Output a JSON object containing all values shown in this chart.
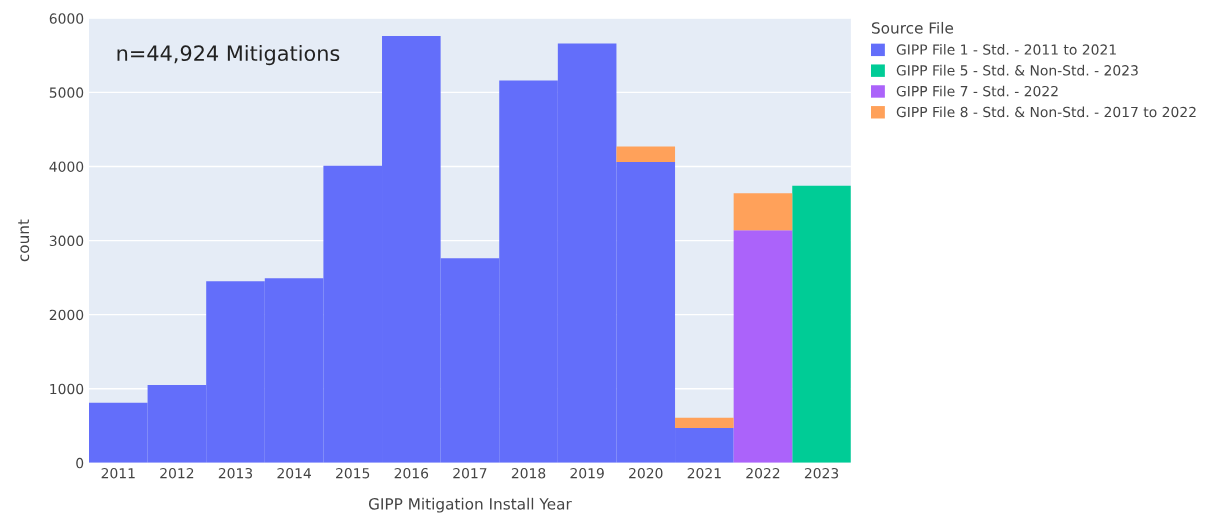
{
  "chart_data": {
    "type": "bar",
    "stacked": true,
    "xlabel": "GIPP Mitigation Install Year",
    "ylabel": "count",
    "legend_title": "Source File",
    "categories": [
      "2011",
      "2012",
      "2013",
      "2014",
      "2015",
      "2016",
      "2017",
      "2018",
      "2019",
      "2020",
      "2021",
      "2022",
      "2023"
    ],
    "series": [
      {
        "name": "GIPP File 1 - Std. - 2011 to 2021",
        "color": "#636efa",
        "values": [
          810,
          1050,
          2450,
          2490,
          4010,
          5760,
          2760,
          5160,
          5660,
          4060,
          470,
          null,
          null
        ]
      },
      {
        "name": "GIPP File 5 - Std. & Non-Std. - 2023",
        "color": "#00cc96",
        "values": [
          null,
          null,
          null,
          null,
          null,
          null,
          null,
          null,
          null,
          null,
          null,
          null,
          3740
        ]
      },
      {
        "name": "GIPP File 7 - Std. - 2022",
        "color": "#ab63fa",
        "values": [
          null,
          null,
          null,
          null,
          null,
          null,
          null,
          null,
          null,
          null,
          null,
          3140,
          null
        ]
      },
      {
        "name": "GIPP File 8 - Std. & Non-Std. - 2017 to 2022",
        "color": "#ffa15a",
        "values": [
          null,
          null,
          null,
          null,
          null,
          null,
          null,
          null,
          null,
          210,
          140,
          500,
          null
        ]
      }
    ],
    "ylim": [
      0,
      6000
    ],
    "yticks": [
      0,
      1000,
      2000,
      3000,
      4000,
      5000,
      6000
    ],
    "grid": "y",
    "legend": "top right",
    "annotations": [
      "n=44,924 Mitigations"
    ]
  }
}
